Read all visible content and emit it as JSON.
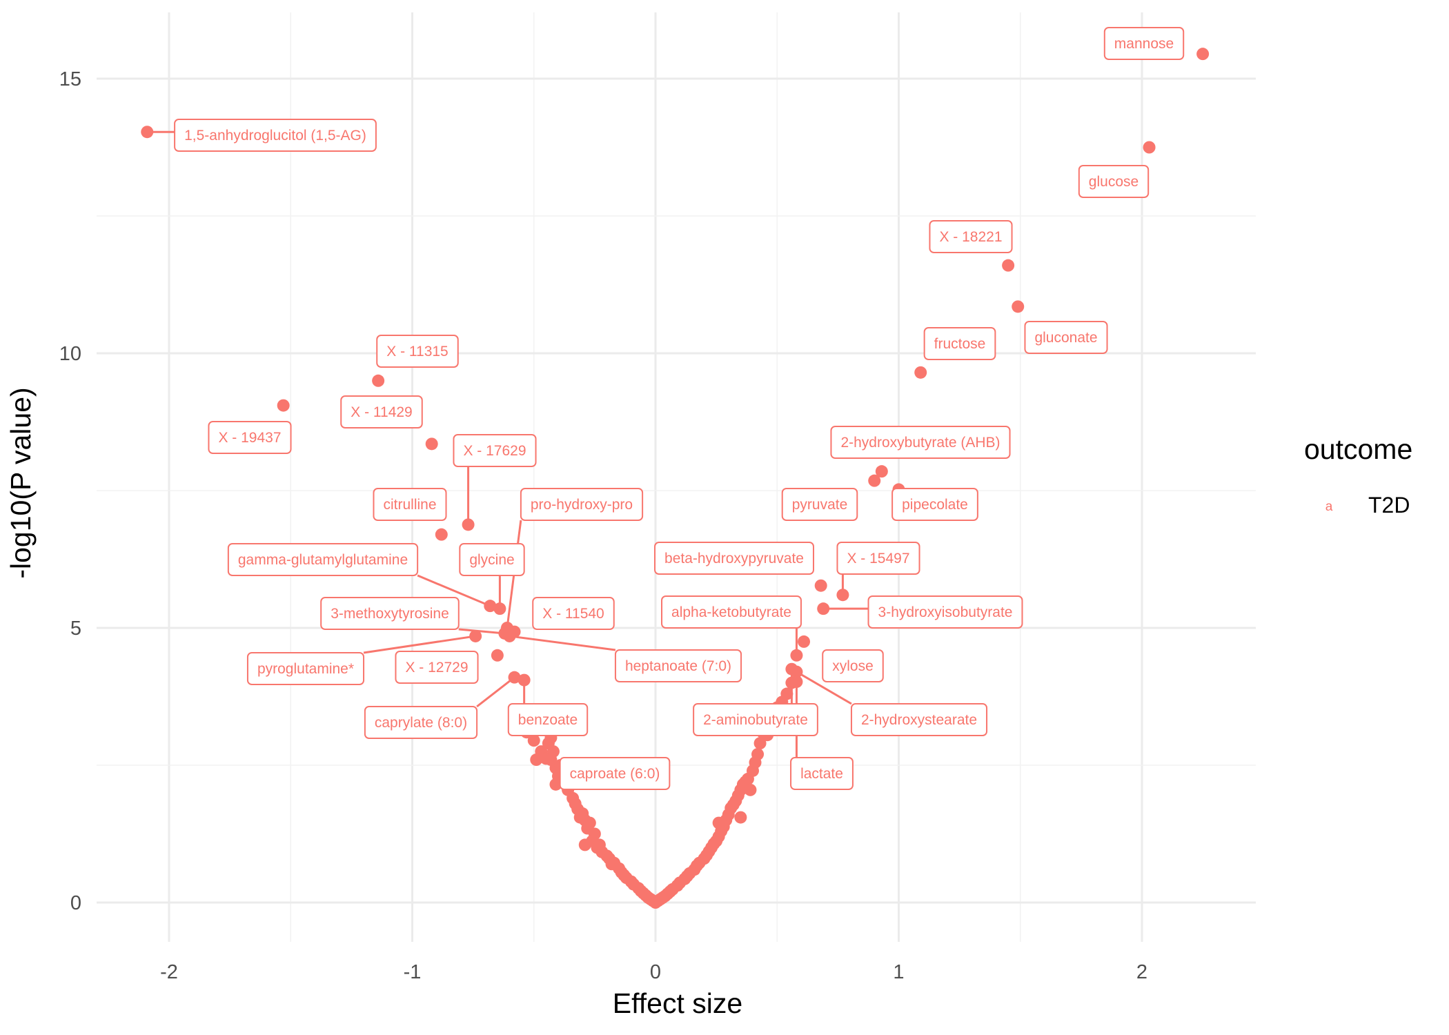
{
  "chart_data": {
    "type": "scatter",
    "title": "",
    "xlabel": "Effect size",
    "ylabel": "-log10(P value)",
    "xlim": [
      -2.3,
      2.45
    ],
    "ylim": [
      -0.7,
      16.2
    ],
    "x_ticks": [
      -2,
      -1,
      0,
      1,
      2
    ],
    "y_ticks": [
      0,
      5,
      10,
      15
    ],
    "x_tick_labels": [
      "-2",
      "-1",
      "0",
      "1",
      "2"
    ],
    "y_tick_labels": [
      "0",
      "5",
      "10",
      "15"
    ],
    "grid": true,
    "color": "#F8766D",
    "legend": {
      "title": "outcome",
      "key_glyph": "a",
      "entries": [
        "T2D"
      ],
      "placement": "right"
    },
    "labeled_points": [
      {
        "label": "mannose",
        "x": 2.25,
        "y": 15.45
      },
      {
        "label": "glucose",
        "x": 2.03,
        "y": 13.75
      },
      {
        "label": "1,5-anhydroglucitol (1,5-AG)",
        "x": -2.09,
        "y": 14.03
      },
      {
        "label": "X - 18221",
        "x": 1.45,
        "y": 11.6
      },
      {
        "label": "gluconate",
        "x": 1.49,
        "y": 10.85
      },
      {
        "label": "fructose",
        "x": 1.09,
        "y": 9.65
      },
      {
        "label": "X - 11315",
        "x": -1.14,
        "y": 9.5
      },
      {
        "label": "X - 19437",
        "x": -1.53,
        "y": 9.05
      },
      {
        "label": "X - 11429",
        "x": -0.92,
        "y": 8.35
      },
      {
        "label": "2-hydroxybutyrate (AHB)",
        "x": 0.93,
        "y": 7.85
      },
      {
        "label": "pyruvate",
        "x": 0.9,
        "y": 7.68
      },
      {
        "label": "pipecolate",
        "x": 1.0,
        "y": 7.52
      },
      {
        "label": "X - 17629",
        "x": -0.77,
        "y": 6.88
      },
      {
        "label": "citrulline",
        "x": -0.88,
        "y": 6.7
      },
      {
        "label": "pro-hydroxy-pro",
        "x": -0.61,
        "y": 5.0
      },
      {
        "label": "X - 15497",
        "x": 0.77,
        "y": 5.6
      },
      {
        "label": "beta-hydroxypyruvate",
        "x": 0.68,
        "y": 5.77
      },
      {
        "label": "3-hydroxyisobutyrate",
        "x": 0.69,
        "y": 5.35
      },
      {
        "label": "glycine",
        "x": -0.64,
        "y": 5.35
      },
      {
        "label": "gamma-glutamylglutamine",
        "x": -0.68,
        "y": 5.4
      },
      {
        "label": "3-methoxytyrosine",
        "x": -0.62,
        "y": 4.9
      },
      {
        "label": "X - 11540",
        "x": -0.58,
        "y": 4.93
      },
      {
        "label": "heptanoate (7:0)",
        "x": -0.6,
        "y": 4.85
      },
      {
        "label": "pyroglutamine*",
        "x": -0.74,
        "y": 4.85
      },
      {
        "label": "X - 12729",
        "x": -0.65,
        "y": 4.5
      },
      {
        "label": "alpha-ketobutyrate",
        "x": 0.58,
        "y": 4.5
      },
      {
        "label": "xylose",
        "x": 0.61,
        "y": 4.75
      },
      {
        "label": "caprylate (8:0)",
        "x": -0.58,
        "y": 4.1
      },
      {
        "label": "benzoate",
        "x": -0.54,
        "y": 4.05
      },
      {
        "label": "2-aminobutyrate",
        "x": 0.56,
        "y": 4.25
      },
      {
        "label": "2-hydroxystearate",
        "x": 0.58,
        "y": 4.2
      },
      {
        "label": "lactate",
        "x": 0.58,
        "y": 4.02
      },
      {
        "label": "caproate (6:0)",
        "x": -0.43,
        "y": 2.6
      }
    ],
    "background_points": [
      [
        -0.57,
        3.5
      ],
      [
        -0.55,
        3.3
      ],
      [
        -0.53,
        3.1
      ],
      [
        -0.5,
        2.95
      ],
      [
        -0.49,
        2.6
      ],
      [
        -0.47,
        2.75
      ],
      [
        -0.45,
        2.62
      ],
      [
        -0.44,
        2.9
      ],
      [
        -0.43,
        3.0
      ],
      [
        -0.42,
        2.75
      ],
      [
        -0.41,
        2.45
      ],
      [
        -0.4,
        2.3
      ],
      [
        -0.41,
        2.15
      ],
      [
        -0.39,
        2.5
      ],
      [
        -0.38,
        2.35
      ],
      [
        -0.36,
        2.05
      ],
      [
        -0.35,
        2.2
      ],
      [
        -0.34,
        1.9
      ],
      [
        -0.33,
        1.8
      ],
      [
        -0.32,
        1.7
      ],
      [
        -0.31,
        1.55
      ],
      [
        -0.3,
        1.62
      ],
      [
        -0.29,
        1.5
      ],
      [
        -0.29,
        1.05
      ],
      [
        -0.28,
        1.35
      ],
      [
        -0.27,
        1.45
      ],
      [
        -0.26,
        1.12
      ],
      [
        -0.25,
        1.25
      ],
      [
        -0.24,
        1.0
      ],
      [
        -0.23,
        1.05
      ],
      [
        -0.22,
        0.92
      ],
      [
        -0.2,
        0.85
      ],
      [
        -0.19,
        0.8
      ],
      [
        -0.18,
        0.7
      ],
      [
        -0.17,
        0.72
      ],
      [
        -0.15,
        0.62
      ],
      [
        -0.14,
        0.55
      ],
      [
        -0.13,
        0.5
      ],
      [
        -0.12,
        0.45
      ],
      [
        -0.1,
        0.38
      ],
      [
        -0.09,
        0.33
      ],
      [
        -0.07,
        0.26
      ],
      [
        -0.06,
        0.21
      ],
      [
        -0.05,
        0.17
      ],
      [
        -0.04,
        0.13
      ],
      [
        -0.03,
        0.09
      ],
      [
        -0.02,
        0.06
      ],
      [
        -0.01,
        0.03
      ],
      [
        0.0,
        0.0
      ],
      [
        0.01,
        0.03
      ],
      [
        0.02,
        0.06
      ],
      [
        0.03,
        0.09
      ],
      [
        0.04,
        0.12
      ],
      [
        0.05,
        0.16
      ],
      [
        0.06,
        0.2
      ],
      [
        0.07,
        0.24
      ],
      [
        0.09,
        0.31
      ],
      [
        0.1,
        0.36
      ],
      [
        0.12,
        0.43
      ],
      [
        0.13,
        0.48
      ],
      [
        0.14,
        0.53
      ],
      [
        0.16,
        0.6
      ],
      [
        0.17,
        0.67
      ],
      [
        0.18,
        0.72
      ],
      [
        0.2,
        0.8
      ],
      [
        0.21,
        0.86
      ],
      [
        0.22,
        0.93
      ],
      [
        0.23,
        1.0
      ],
      [
        0.24,
        1.07
      ],
      [
        0.25,
        1.12
      ],
      [
        0.26,
        1.2
      ],
      [
        0.26,
        1.45
      ],
      [
        0.27,
        1.3
      ],
      [
        0.28,
        1.38
      ],
      [
        0.29,
        1.5
      ],
      [
        0.3,
        1.6
      ],
      [
        0.31,
        1.72
      ],
      [
        0.32,
        1.78
      ],
      [
        0.33,
        1.85
      ],
      [
        0.34,
        1.95
      ],
      [
        0.35,
        2.05
      ],
      [
        0.35,
        1.55
      ],
      [
        0.36,
        2.15
      ],
      [
        0.37,
        2.2
      ],
      [
        0.38,
        2.25
      ],
      [
        0.39,
        2.05
      ],
      [
        0.4,
        2.4
      ],
      [
        0.41,
        2.55
      ],
      [
        0.42,
        2.7
      ],
      [
        0.43,
        2.9
      ],
      [
        0.44,
        3.1
      ],
      [
        0.45,
        3.2
      ],
      [
        0.46,
        3.05
      ],
      [
        0.47,
        3.3
      ],
      [
        0.48,
        3.4
      ],
      [
        0.5,
        3.55
      ],
      [
        0.52,
        3.65
      ],
      [
        0.54,
        3.8
      ],
      [
        0.56,
        4.0
      ]
    ]
  }
}
